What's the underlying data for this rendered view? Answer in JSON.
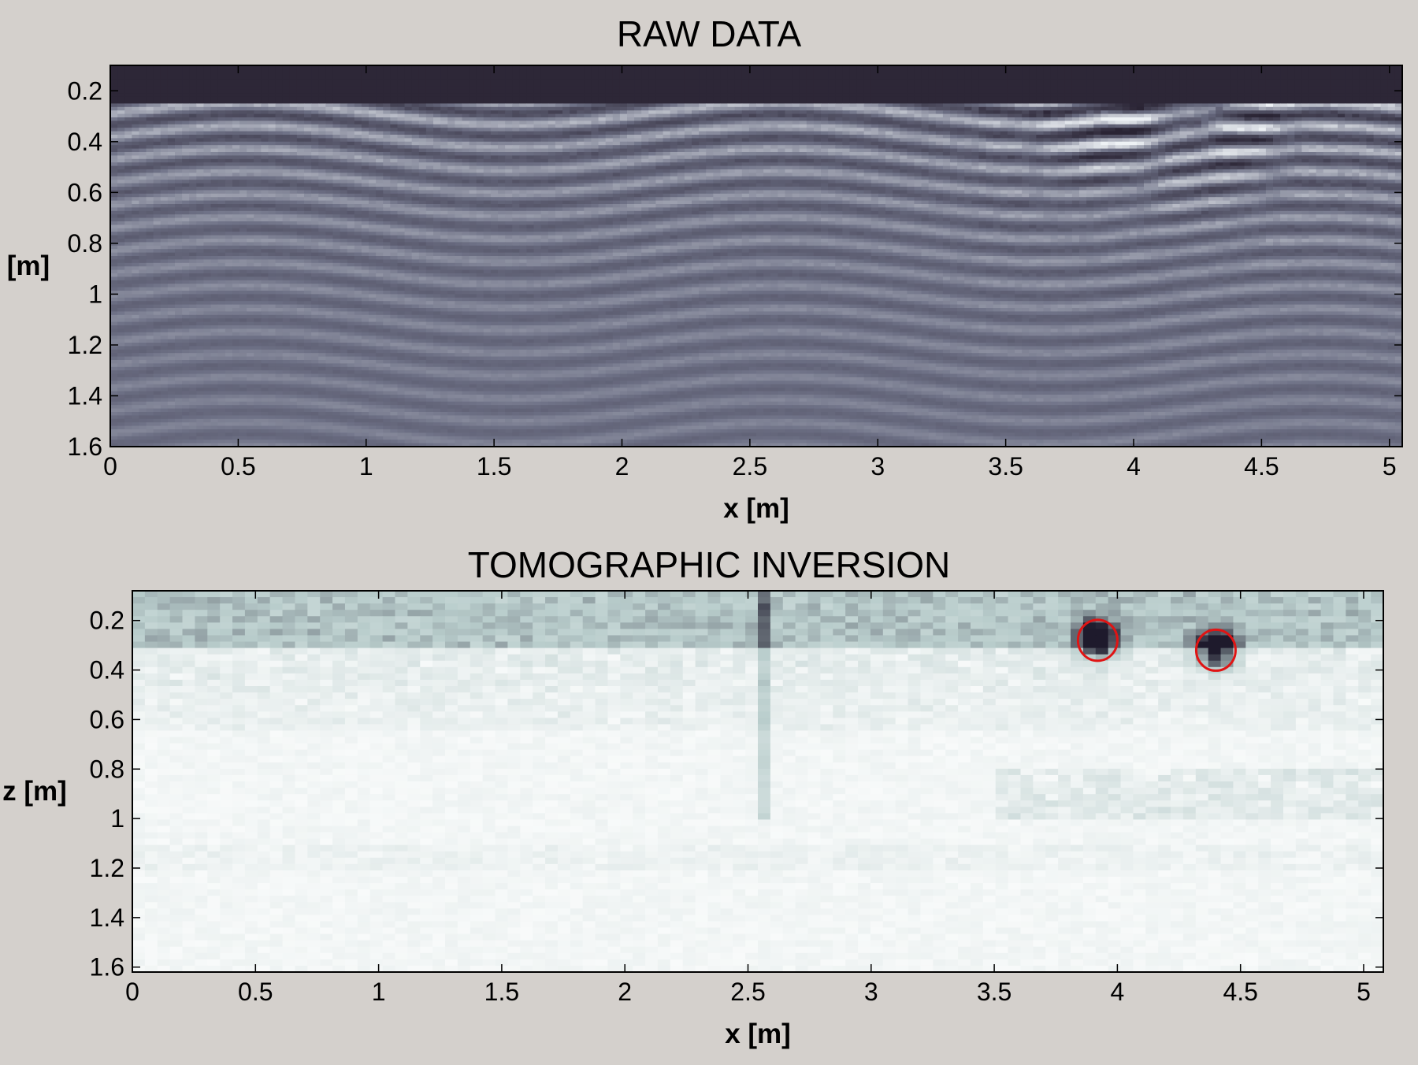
{
  "chart_data": [
    {
      "type": "heatmap",
      "title": "RAW DATA",
      "xlabel": "x [m]",
      "ylabel": "[m]",
      "xlim": [
        0,
        5.05
      ],
      "ylim": [
        1.6,
        0.1
      ],
      "x_reversed": false,
      "y_reversed": true,
      "x_ticks": [
        "0",
        "0.5",
        "1",
        "1.5",
        "2",
        "2.5",
        "3",
        "3.5",
        "4",
        "4.5",
        "5"
      ],
      "y_ticks": [
        "0.2",
        "0.4",
        "0.6",
        "0.8",
        "1",
        "1.2",
        "1.4",
        "1.6"
      ],
      "colormap": [
        "#2a2434",
        "#6e7186",
        "#eef2f5"
      ],
      "description_of_surface": {
        "surface_band_depth": [
          0.1,
          0.25
        ],
        "hyperbola_apexes_x": [
          3.9,
          4.35
        ],
        "hyperbola_apexes_z": [
          0.3,
          0.33
        ]
      }
    },
    {
      "type": "heatmap",
      "title": "TOMOGRAPHIC INVERSION",
      "xlabel": "x [m]",
      "ylabel": "z [m]",
      "xlim": [
        0,
        5.08
      ],
      "ylim": [
        1.62,
        0.08
      ],
      "y_reversed": true,
      "x_ticks": [
        "0",
        "0.5",
        "1",
        "1.5",
        "2",
        "2.5",
        "3",
        "3.5",
        "4",
        "4.5",
        "5"
      ],
      "y_ticks": [
        "0.2",
        "0.4",
        "0.6",
        "0.8",
        "1",
        "1.2",
        "1.4",
        "1.6"
      ],
      "colormap": [
        "#ffffff",
        "#b9cdcc",
        "#1e1a2c"
      ],
      "anomalies": [
        {
          "x": 3.92,
          "z": 0.28,
          "circled": true
        },
        {
          "x": 4.4,
          "z": 0.32,
          "circled": true
        }
      ],
      "marker_color": "#e01414"
    }
  ]
}
